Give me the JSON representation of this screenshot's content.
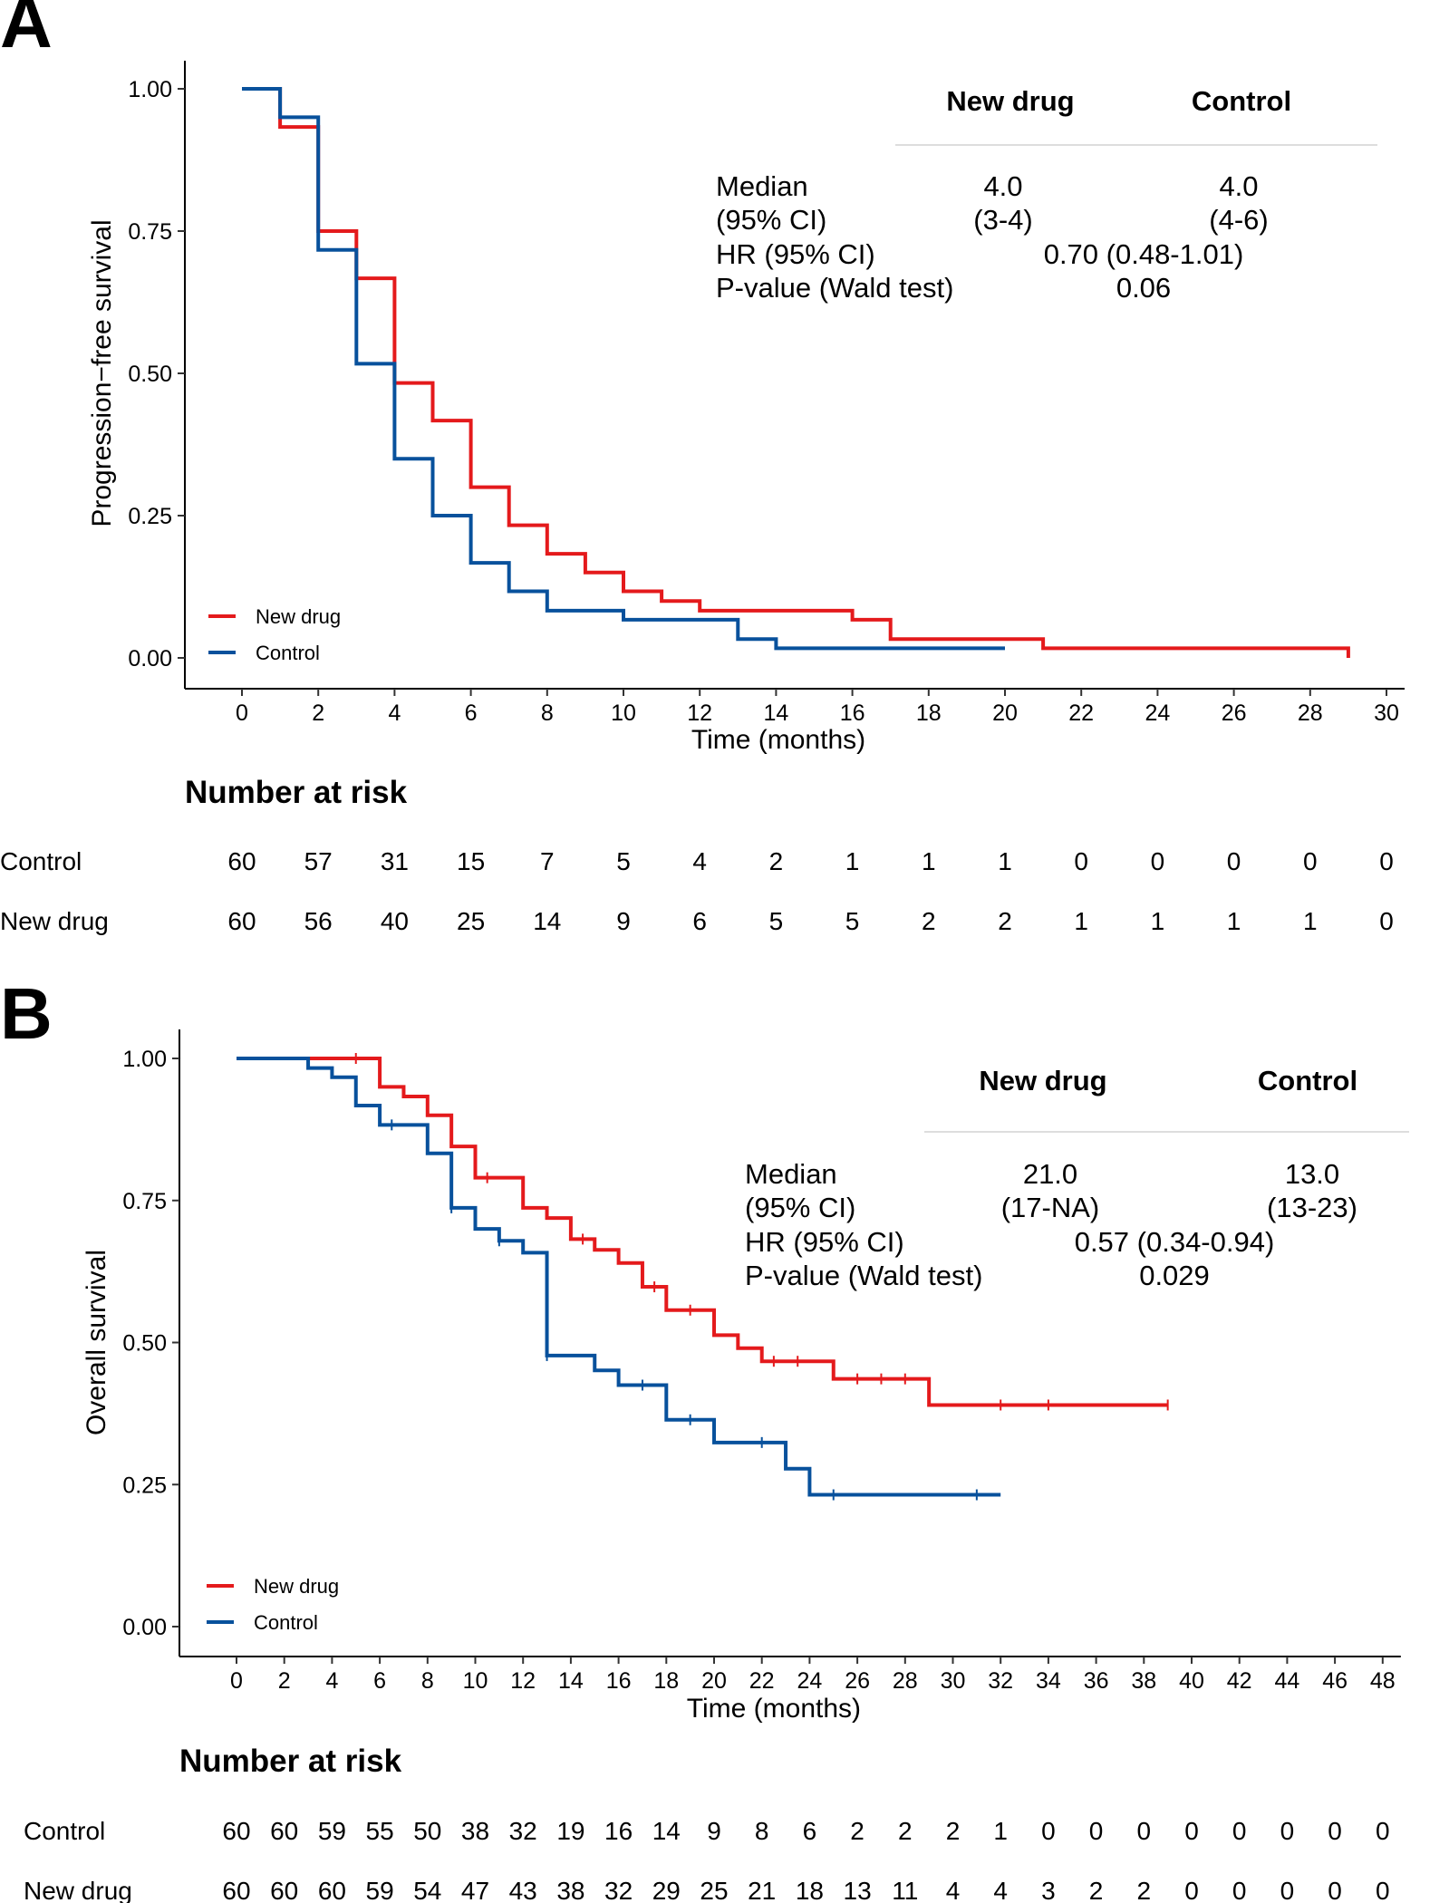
{
  "panels": [
    {
      "letter": "A",
      "chart_data": {
        "type": "line",
        "step": true,
        "title": "",
        "xlabel": "Time (months)",
        "ylabel": "Progression−free survival",
        "xlim": [
          0,
          30
        ],
        "ylim": [
          0,
          1
        ],
        "xticks": [
          0,
          2,
          4,
          6,
          8,
          10,
          12,
          14,
          16,
          18,
          20,
          22,
          24,
          26,
          28,
          30
        ],
        "yticks": [
          "0.00",
          "0.25",
          "0.50",
          "0.75",
          "1.00"
        ],
        "legend_position": "bottom-left",
        "series": [
          {
            "name": "New drug",
            "color": "#e41a1c",
            "x": [
              0,
              1,
              2,
              3,
              4,
              5,
              6,
              7,
              8,
              9,
              10,
              11,
              12,
              16,
              17,
              21,
              29
            ],
            "y": [
              1.0,
              0.933,
              0.75,
              0.667,
              0.483,
              0.417,
              0.3,
              0.233,
              0.183,
              0.15,
              0.117,
              0.1,
              0.083,
              0.067,
              0.033,
              0.017,
              0.0
            ],
            "end": 29,
            "censor": []
          },
          {
            "name": "Control",
            "color": "#08519c",
            "x": [
              0,
              1,
              2,
              3,
              4,
              5,
              6,
              7,
              8,
              10,
              13,
              14
            ],
            "y": [
              1.0,
              0.95,
              0.717,
              0.517,
              0.35,
              0.25,
              0.167,
              0.117,
              0.083,
              0.067,
              0.033,
              0.017
            ],
            "end": 20,
            "censor": []
          }
        ],
        "stats_table": {
          "col_headers": [
            "New drug",
            "Control"
          ],
          "rows": [
            {
              "label": "Median",
              "new_drug": "4.0",
              "control": "4.0"
            },
            {
              "label": "(95% CI)",
              "new_drug": "(3-4)",
              "control": "(4-6)"
            },
            {
              "label": "HR (95% CI)",
              "value": "0.70 (0.48-1.01)"
            },
            {
              "label": "P-value (Wald test)",
              "value": "0.06"
            }
          ]
        },
        "risk_table": {
          "title": "Number at risk",
          "times": [
            0,
            2,
            4,
            6,
            8,
            10,
            12,
            14,
            16,
            18,
            20,
            22,
            24,
            26,
            28,
            30
          ],
          "rows": [
            {
              "name": "Control",
              "color": "#08519c",
              "values": [
                "60",
                "57",
                "31",
                "15",
                "7",
                "5",
                "4",
                "2",
                "1",
                "1",
                "1",
                "0",
                "0",
                "0",
                "0",
                "0"
              ]
            },
            {
              "name": "New drug",
              "color": "#e41a1c",
              "values": [
                "60",
                "56",
                "40",
                "25",
                "14",
                "9",
                "6",
                "5",
                "5",
                "2",
                "2",
                "1",
                "1",
                "1",
                "1",
                "0"
              ]
            }
          ]
        }
      }
    },
    {
      "letter": "B",
      "chart_data": {
        "type": "line",
        "step": true,
        "title": "",
        "xlabel": "Time (months)",
        "ylabel": "Overall survival",
        "xlim": [
          0,
          48
        ],
        "ylim": [
          0,
          1
        ],
        "xticks": [
          0,
          2,
          4,
          6,
          8,
          10,
          12,
          14,
          16,
          18,
          20,
          22,
          24,
          26,
          28,
          30,
          32,
          34,
          36,
          38,
          40,
          42,
          44,
          46,
          48
        ],
        "yticks": [
          "0.00",
          "0.25",
          "0.50",
          "0.75",
          "1.00"
        ],
        "legend_position": "bottom-left",
        "series": [
          {
            "name": "New drug",
            "color": "#e41a1c",
            "x": [
              0,
              6,
              7,
              8,
              9,
              10,
              12,
              13,
              14,
              15,
              16,
              17,
              18,
              20,
              21,
              22,
              25,
              29
            ],
            "y": [
              1.0,
              0.95,
              0.933,
              0.9,
              0.845,
              0.79,
              0.737,
              0.719,
              0.682,
              0.663,
              0.64,
              0.598,
              0.557,
              0.513,
              0.49,
              0.467,
              0.436,
              0.39
            ],
            "end": 39,
            "censor": [
              5,
              10.5,
              14.5,
              17.5,
              19,
              22.5,
              23.5,
              26,
              27,
              28,
              32,
              34,
              39
            ]
          },
          {
            "name": "Control",
            "color": "#08519c",
            "x": [
              0,
              3,
              4,
              5,
              6,
              8,
              9,
              10,
              11,
              12,
              13,
              15,
              16,
              18,
              20,
              23,
              24
            ],
            "y": [
              1.0,
              0.983,
              0.967,
              0.917,
              0.883,
              0.833,
              0.737,
              0.7,
              0.679,
              0.658,
              0.477,
              0.451,
              0.425,
              0.364,
              0.324,
              0.278,
              0.232
            ],
            "end": 32,
            "censor": [
              6.5,
              9,
              11,
              13,
              17,
              19,
              22,
              25,
              31
            ]
          }
        ],
        "stats_table": {
          "col_headers": [
            "New drug",
            "Control"
          ],
          "rows": [
            {
              "label": "Median",
              "new_drug": "21.0",
              "control": "13.0"
            },
            {
              "label": "(95% CI)",
              "new_drug": "(17-NA)",
              "control": "(13-23)"
            },
            {
              "label": "HR (95% CI)",
              "value": "0.57 (0.34-0.94)"
            },
            {
              "label": "P-value (Wald test)",
              "value": "0.029"
            }
          ]
        },
        "risk_table": {
          "title": "Number at risk",
          "times": [
            0,
            2,
            4,
            6,
            8,
            10,
            12,
            14,
            16,
            18,
            20,
            22,
            24,
            26,
            28,
            30,
            32,
            34,
            36,
            38,
            40,
            42,
            44,
            46,
            48
          ],
          "rows": [
            {
              "name": "Control",
              "color": "#08519c",
              "values": [
                "60",
                "60",
                "59",
                "55",
                "50",
                "38",
                "32",
                "19",
                "16",
                "14",
                "9",
                "8",
                "6",
                "2",
                "2",
                "2",
                "1",
                "0",
                "0",
                "0",
                "0",
                "0",
                "0",
                "0",
                "0"
              ]
            },
            {
              "name": "New drug",
              "color": "#e41a1c",
              "values": [
                "60",
                "60",
                "60",
                "59",
                "54",
                "47",
                "43",
                "38",
                "32",
                "29",
                "25",
                "21",
                "18",
                "13",
                "11",
                "4",
                "4",
                "3",
                "2",
                "2",
                "0",
                "0",
                "0",
                "0",
                "0"
              ]
            }
          ]
        }
      }
    }
  ]
}
